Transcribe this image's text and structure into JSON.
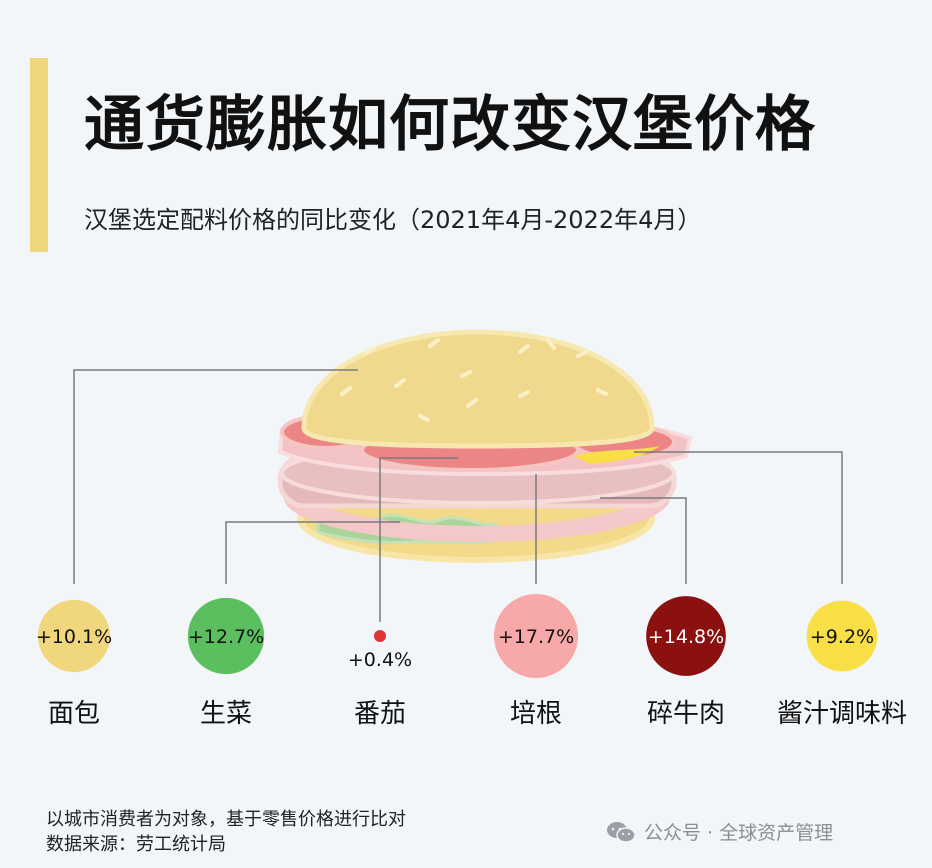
{
  "title": "通货膨胀如何改变汉堡价格",
  "subtitle": "汉堡选定配料价格的同比变化（2021年4月-2022年4月）",
  "chart_data": {
    "type": "bubble",
    "title": "通货膨胀如何改变汉堡价格",
    "subtitle": "汉堡选定配料价格的同比变化（2021年4月-2022年4月）",
    "categories": [
      "面包",
      "生菜",
      "番茄",
      "培根",
      "碎牛肉",
      "酱汁调味料"
    ],
    "values": [
      10.1,
      12.7,
      0.4,
      17.7,
      14.8,
      9.2
    ],
    "value_labels": [
      "+10.1%",
      "+12.7%",
      "+0.4%",
      "+17.7%",
      "+14.8%",
      "+9.2%"
    ],
    "colors": [
      "#f0d77e",
      "#5cbf5f",
      "#e03535",
      "#f7a8a8",
      "#8b1010",
      "#f7df45"
    ],
    "unit": "%"
  },
  "footnote": {
    "line1": "以城市消费者为对象，基于零售价格进行比对",
    "line2": "数据来源：劳工统计局"
  },
  "watermark": {
    "text": "公众号 · 全球资产管理",
    "icon": "wechat-icon"
  }
}
